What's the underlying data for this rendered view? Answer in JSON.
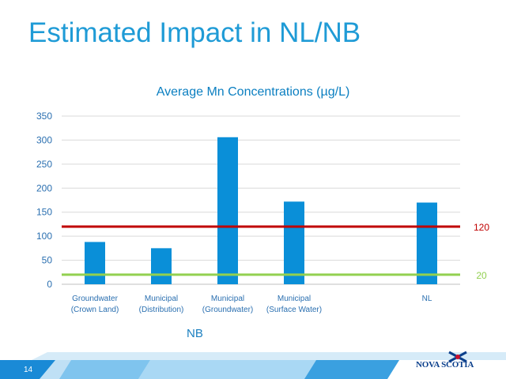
{
  "slide": {
    "title": "Estimated Impact in NL/NB",
    "number": "14",
    "group_label": "NB"
  },
  "logo": {
    "text": "NOVA SCOTIA"
  },
  "colors": {
    "title": "#1f9bd6",
    "bar": "#0a8fd8",
    "line_120": "#c00000",
    "line_20": "#92d050",
    "axis_text": "#2a6fb0",
    "footer_band": "#1a8ad6"
  },
  "chart_data": {
    "type": "bar",
    "title": "Average Mn Concentrations (µg/L)",
    "categories": [
      [
        "Groundwater",
        "(Crown Land)"
      ],
      [
        "Municipal",
        "(Distribution)"
      ],
      [
        "Municipal",
        "(Groundwater)"
      ],
      [
        "Municipal",
        "(Surface Water)"
      ],
      [
        "",
        ""
      ],
      [
        "NL",
        ""
      ]
    ],
    "values": [
      88,
      75,
      306,
      172,
      null,
      170
    ],
    "ylim": [
      0,
      350
    ],
    "yticks": [
      0,
      50,
      100,
      150,
      200,
      250,
      300,
      350
    ],
    "grid": true,
    "reference_lines": [
      {
        "value": 120,
        "label": "120",
        "color": "#c00000"
      },
      {
        "value": 20,
        "label": "20",
        "color": "#92d050"
      }
    ]
  }
}
